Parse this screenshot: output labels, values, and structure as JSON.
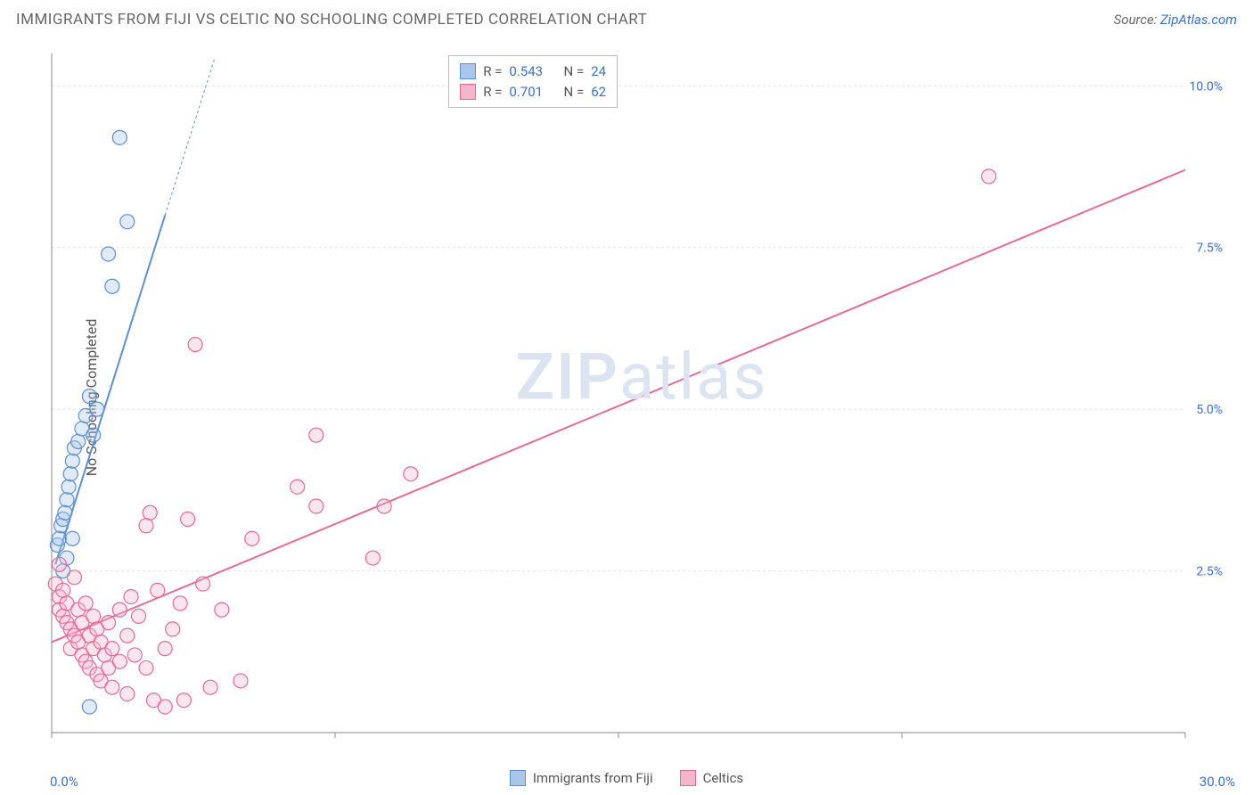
{
  "header": {
    "title": "IMMIGRANTS FROM FIJI VS CELTIC NO SCHOOLING COMPLETED CORRELATION CHART",
    "source_prefix": "Source: ",
    "source_link": "ZipAtlas.com"
  },
  "watermark": {
    "left": "ZIP",
    "right": "atlas"
  },
  "ylabel": "No Schooling Completed",
  "chart": {
    "type": "scatter",
    "background_color": "#ffffff",
    "grid_color": "#e0e0e0",
    "grid_dash": "3,3",
    "axis_color": "#888888",
    "xlim": [
      0,
      30
    ],
    "ylim": [
      0,
      10.5
    ],
    "xtick_positions": [
      0,
      7.5,
      15,
      22.5,
      30
    ],
    "ytick_positions": [
      2.5,
      5.0,
      7.5,
      10.0
    ],
    "xtick_labels_shown": {
      "min": "0.0%",
      "max": "30.0%"
    },
    "ytick_labels": [
      "2.5%",
      "5.0%",
      "7.5%",
      "10.0%"
    ],
    "tick_label_color": "#3b6fd6",
    "tick_label_fontsize": 14,
    "marker_radius": 8,
    "marker_fill_opacity": 0.35,
    "marker_stroke_width": 1.2,
    "trend_line_width": 2,
    "series": [
      {
        "key": "fiji",
        "name": "Immigrants from Fiji",
        "color_stroke": "#5b8fd6",
        "color_fill": "#a9c6eb",
        "r_value": "0.543",
        "n_value": "24",
        "trend": {
          "x1": 0.1,
          "y1": 2.6,
          "x2": 3.0,
          "y2": 8.0,
          "dashed_extension": {
            "x2": 4.3,
            "y2": 10.4
          }
        },
        "points": [
          [
            0.15,
            2.9
          ],
          [
            0.2,
            3.0
          ],
          [
            0.25,
            3.2
          ],
          [
            0.3,
            3.3
          ],
          [
            0.35,
            3.4
          ],
          [
            0.4,
            3.6
          ],
          [
            0.45,
            3.8
          ],
          [
            0.5,
            4.0
          ],
          [
            0.55,
            4.2
          ],
          [
            0.6,
            4.4
          ],
          [
            0.7,
            4.5
          ],
          [
            0.8,
            4.7
          ],
          [
            0.9,
            4.9
          ],
          [
            1.0,
            5.2
          ],
          [
            1.1,
            4.6
          ],
          [
            1.2,
            5.0
          ],
          [
            0.3,
            2.5
          ],
          [
            0.4,
            2.7
          ],
          [
            0.55,
            3.0
          ],
          [
            1.5,
            7.4
          ],
          [
            1.6,
            6.9
          ],
          [
            2.0,
            7.9
          ],
          [
            1.8,
            9.2
          ],
          [
            1.0,
            0.4
          ]
        ]
      },
      {
        "key": "celtics",
        "name": "Celtics",
        "color_stroke": "#e86a93",
        "color_fill": "#f4b6cb",
        "r_value": "0.701",
        "n_value": "62",
        "trend": {
          "x1": 0.0,
          "y1": 1.4,
          "x2": 30.0,
          "y2": 8.7
        },
        "points": [
          [
            0.1,
            2.3
          ],
          [
            0.2,
            2.1
          ],
          [
            0.2,
            1.9
          ],
          [
            0.3,
            1.8
          ],
          [
            0.3,
            2.2
          ],
          [
            0.4,
            1.7
          ],
          [
            0.4,
            2.0
          ],
          [
            0.5,
            1.6
          ],
          [
            0.5,
            1.3
          ],
          [
            0.6,
            1.5
          ],
          [
            0.6,
            2.4
          ],
          [
            0.7,
            1.4
          ],
          [
            0.7,
            1.9
          ],
          [
            0.8,
            1.2
          ],
          [
            0.8,
            1.7
          ],
          [
            0.9,
            1.1
          ],
          [
            0.9,
            2.0
          ],
          [
            1.0,
            1.0
          ],
          [
            1.0,
            1.5
          ],
          [
            1.1,
            1.3
          ],
          [
            1.1,
            1.8
          ],
          [
            1.2,
            0.9
          ],
          [
            1.2,
            1.6
          ],
          [
            1.3,
            1.4
          ],
          [
            1.3,
            0.8
          ],
          [
            1.4,
            1.2
          ],
          [
            1.5,
            1.0
          ],
          [
            1.5,
            1.7
          ],
          [
            1.6,
            0.7
          ],
          [
            1.6,
            1.3
          ],
          [
            1.8,
            1.1
          ],
          [
            1.8,
            1.9
          ],
          [
            2.0,
            0.6
          ],
          [
            2.0,
            1.5
          ],
          [
            2.1,
            2.1
          ],
          [
            2.2,
            1.2
          ],
          [
            2.3,
            1.8
          ],
          [
            2.5,
            3.2
          ],
          [
            2.5,
            1.0
          ],
          [
            2.6,
            3.4
          ],
          [
            2.7,
            0.5
          ],
          [
            2.8,
            2.2
          ],
          [
            3.0,
            1.3
          ],
          [
            3.0,
            0.4
          ],
          [
            3.2,
            1.6
          ],
          [
            3.4,
            2.0
          ],
          [
            3.5,
            0.5
          ],
          [
            3.6,
            3.3
          ],
          [
            4.0,
            2.3
          ],
          [
            4.2,
            0.7
          ],
          [
            4.5,
            1.9
          ],
          [
            5.0,
            0.8
          ],
          [
            5.3,
            3.0
          ],
          [
            3.8,
            6.0
          ],
          [
            6.5,
            3.8
          ],
          [
            7.0,
            4.6
          ],
          [
            7.0,
            3.5
          ],
          [
            8.5,
            2.7
          ],
          [
            8.8,
            3.5
          ],
          [
            9.5,
            4.0
          ],
          [
            24.8,
            8.6
          ],
          [
            0.2,
            2.6
          ]
        ]
      }
    ]
  },
  "corr_box": {
    "r_label": "R =",
    "n_label": "N ="
  },
  "bottom_legend": {
    "items": [
      {
        "key": "fiji",
        "label": "Immigrants from Fiji"
      },
      {
        "key": "celtics",
        "label": "Celtics"
      }
    ]
  }
}
